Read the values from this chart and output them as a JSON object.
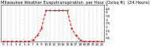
{
  "title": "Milwaukee Weather Evapotranspiration  per Hour (Oz/sq ft)  (24 Hours)",
  "hours": [
    0,
    1,
    2,
    3,
    4,
    5,
    6,
    7,
    8,
    9,
    10,
    11,
    12,
    13,
    14,
    15,
    16,
    17,
    18,
    19,
    20,
    21,
    22,
    23
  ],
  "values": [
    0.0,
    0.0,
    0.0,
    0.0,
    0.0,
    0.0,
    0.0,
    0.02,
    0.08,
    0.18,
    0.42,
    0.42,
    0.42,
    0.42,
    0.42,
    0.42,
    0.18,
    0.08,
    0.02,
    0.0,
    0.0,
    0.0,
    0.0,
    0.0
  ],
  "line_color": "#ff0000",
  "line_style": "--",
  "line_width": 0.7,
  "marker": ".",
  "marker_size": 1.2,
  "bg_color": "#ffffff",
  "grid_color": "#888888",
  "ylim": [
    0.0,
    0.5
  ],
  "xlim": [
    -0.5,
    23.5
  ],
  "yticks": [
    0.05,
    0.1,
    0.15,
    0.2,
    0.25,
    0.3,
    0.35,
    0.4,
    0.45,
    0.5
  ],
  "ytick_labels": [
    ".05",
    ".1",
    ".15",
    ".2",
    ".25",
    ".3",
    ".35",
    ".4",
    ".45",
    ".5"
  ],
  "title_fontsize": 3.8,
  "tick_fontsize": 3.0
}
